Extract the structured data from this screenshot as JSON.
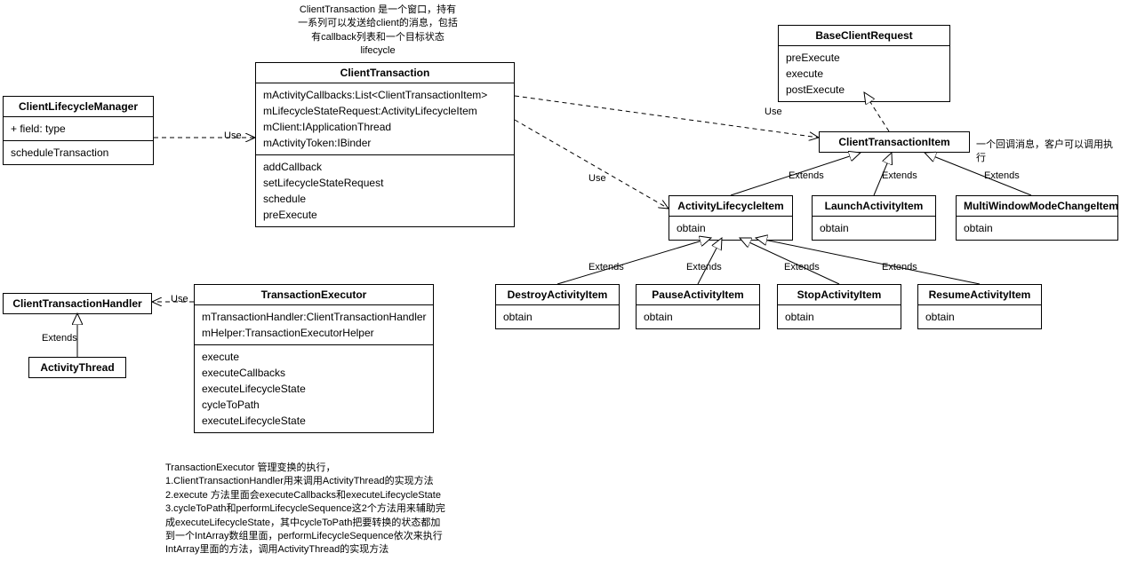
{
  "colors": {
    "line": "#000000",
    "bg": "#ffffff",
    "text": "#000000"
  },
  "notes": {
    "ct_desc": "ClientTransaction 是一个窗口，持有\n一系列可以发送给client的消息，包括\n有callback列表和一个目标状态\nlifecycle",
    "cti_desc": "一个回调消息，客户可以调用执行",
    "te_desc": "TransactionExecutor 管理变换的执行，\n1.ClientTransactionHandler用来调用ActivityThread的实现方法\n2.execute 方法里面会executeCallbacks和executeLifecycleState\n3.cycleToPath和performLifecycleSequence这2个方法用来辅助完\n成executeLifecycleState，其中cycleToPath把要转换的状态都加\n到一个IntArray数组里面，performLifecycleSequence依次来执行\nIntArray里面的方法，调用ActivityThread的实现方法"
  },
  "boxes": {
    "clm": {
      "title": "ClientLifecycleManager",
      "fields": [
        "+ field: type"
      ],
      "methods": [
        "scheduleTransaction"
      ]
    },
    "ct": {
      "title": "ClientTransaction",
      "fields": [
        "mActivityCallbacks:List<ClientTransactionItem>",
        "mLifecycleStateRequest:ActivityLifecycleItem",
        "mClient:IApplicationThread",
        "mActivityToken:IBinder"
      ],
      "methods": [
        "addCallback",
        "setLifecycleStateRequest",
        "schedule",
        "preExecute"
      ]
    },
    "bcr": {
      "title": "BaseClientRequest",
      "methods": [
        "preExecute",
        "execute",
        "postExecute"
      ]
    },
    "cti": {
      "title": "ClientTransactionItem"
    },
    "ali": {
      "title": "ActivityLifecycleItem",
      "methods": [
        "obtain"
      ]
    },
    "lai": {
      "title": "LaunchActivityItem",
      "methods": [
        "obtain"
      ]
    },
    "mwmci": {
      "title": "MultiWindowModeChangeItem",
      "methods": [
        "obtain"
      ]
    },
    "dai": {
      "title": "DestroyActivityItem",
      "methods": [
        "obtain"
      ]
    },
    "pai": {
      "title": "PauseActivityItem",
      "methods": [
        "obtain"
      ]
    },
    "sai": {
      "title": "StopActivityItem",
      "methods": [
        "obtain"
      ]
    },
    "rai": {
      "title": "ResumeActivityItem",
      "methods": [
        "obtain"
      ]
    },
    "cth": {
      "title": "ClientTransactionHandler"
    },
    "at": {
      "title": "ActivityThread"
    },
    "te": {
      "title": "TransactionExecutor",
      "fields": [
        "mTransactionHandler:ClientTransactionHandler",
        "mHelper:TransactionExecutorHelper"
      ],
      "methods": [
        "execute",
        "executeCallbacks",
        "executeLifecycleState",
        "cycleToPath",
        "executeLifecycleState"
      ]
    }
  },
  "edgeLabels": {
    "use": "Use",
    "extends": "Extends"
  }
}
